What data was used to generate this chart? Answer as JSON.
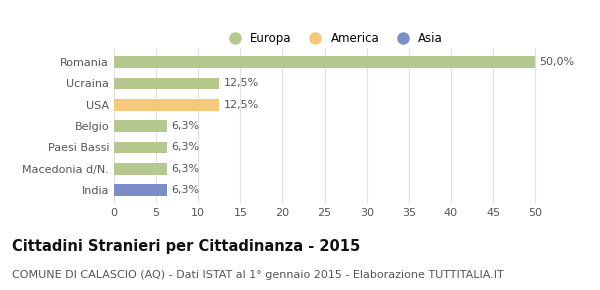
{
  "categories": [
    "Romania",
    "Ucraina",
    "USA",
    "Belgio",
    "Paesi Bassi",
    "Macedonia d/N.",
    "India"
  ],
  "values": [
    50.0,
    12.5,
    12.5,
    6.3,
    6.3,
    6.3,
    6.3
  ],
  "labels": [
    "50,0%",
    "12,5%",
    "12,5%",
    "6,3%",
    "6,3%",
    "6,3%",
    "6,3%"
  ],
  "colors": [
    "#b5c98e",
    "#b5c98e",
    "#f5c87a",
    "#b5c98e",
    "#b5c98e",
    "#b5c98e",
    "#7b8ec8"
  ],
  "legend": [
    {
      "label": "Europa",
      "color": "#b5c98e"
    },
    {
      "label": "America",
      "color": "#f5c87a"
    },
    {
      "label": "Asia",
      "color": "#7b8ec8"
    }
  ],
  "xlim": [
    0,
    52
  ],
  "xticks": [
    0,
    5,
    10,
    15,
    20,
    25,
    30,
    35,
    40,
    45,
    50
  ],
  "title": "Cittadini Stranieri per Cittadinanza - 2015",
  "subtitle": "COMUNE DI CALASCIO (AQ) - Dati ISTAT al 1° gennaio 2015 - Elaborazione TUTTITALIA.IT",
  "bg_color": "#ffffff",
  "grid_color": "#e0e0e0",
  "bar_height": 0.55,
  "title_fontsize": 10.5,
  "subtitle_fontsize": 8,
  "label_fontsize": 8,
  "tick_fontsize": 8,
  "legend_fontsize": 8.5
}
